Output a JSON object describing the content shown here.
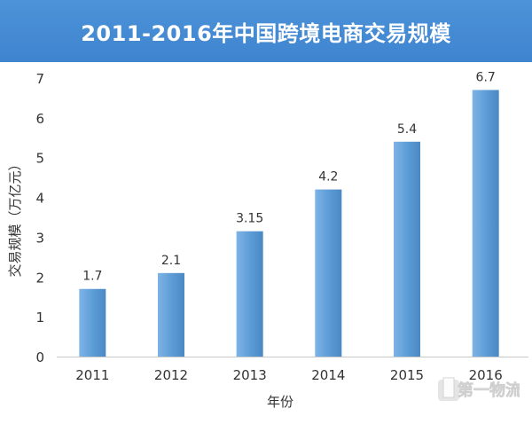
{
  "title": "2011-2016年中国跨境电商交易规模",
  "chart_data": {
    "type": "bar",
    "title": "2011-2016年中国跨境电商交易规模",
    "categories": [
      "2011",
      "2012",
      "2013",
      "2014",
      "2015",
      "2016"
    ],
    "values": [
      1.7,
      2.1,
      3.15,
      4.2,
      5.4,
      6.7
    ],
    "data_labels": [
      "1.7",
      "2.1",
      "3.15",
      "4.2",
      "5.4",
      "6.7"
    ],
    "xlabel": "年份",
    "ylabel": "交易规模（万亿元）",
    "ylim": [
      0,
      7
    ],
    "yticks": [
      "0",
      "1",
      "2",
      "3",
      "4",
      "5",
      "6",
      "7"
    ],
    "grid": false,
    "bar_color": "#5b9bd5"
  },
  "watermark": {
    "text": "第一物流"
  }
}
